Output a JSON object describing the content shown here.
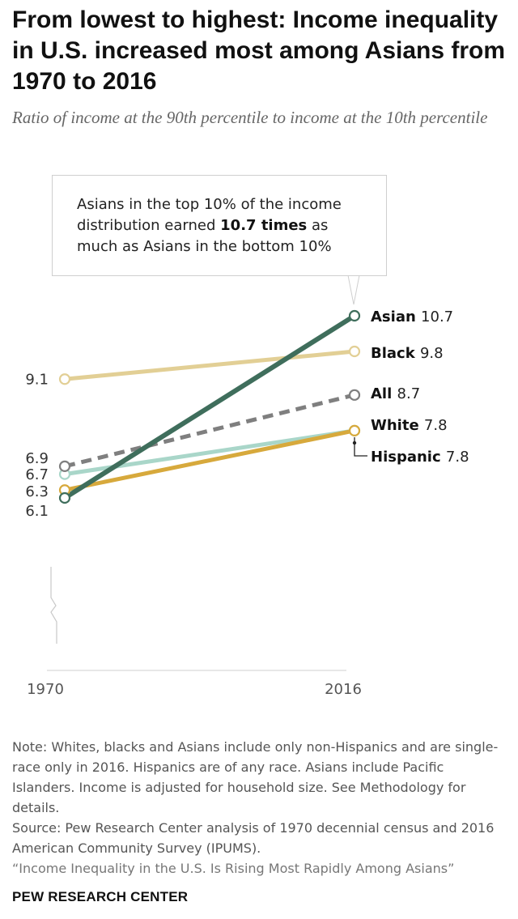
{
  "title": "From lowest to highest: Income inequality in U.S. increased most among Asians from 1970 to 2016",
  "subtitle": "Ratio of income at the 90th percentile to income at the 10th percentile",
  "callout": {
    "text_before": "Asians in the top 10% of the income distribution earned",
    "highlight": "10.7 times",
    "text_after": "as much as Asians in the bottom 10%"
  },
  "notes": {
    "note": "Note: Whites, blacks and Asians include only non-Hispanics and are single-race only in 2016. Hispanics are of any race. Asians include Pacific Islanders. Income is adjusted for household size. See Methodology for details.",
    "source": "Source: Pew Research Center analysis of 1970 decennial census and 2016 American Community Survey (IPUMS).",
    "report": "“Income Inequality in the U.S. Is Rising Most Rapidly Among Asians”"
  },
  "brand": "PEW RESEARCH CENTER",
  "chart_data": {
    "type": "line",
    "title": "From lowest to highest: Income inequality in U.S. increased most among Asians from 1970 to 2016",
    "ylabel": "Ratio of income at the 90th percentile to income at the 10th percentile",
    "xlabel": "",
    "x": [
      "1970",
      "2016"
    ],
    "ylim": [
      6.1,
      10.7
    ],
    "axis_break": true,
    "left_labels": [
      "9.1",
      "6.9",
      "6.7",
      "6.3",
      "6.1"
    ],
    "series": [
      {
        "name": "Black",
        "values": [
          9.1,
          9.8
        ],
        "color": "#e2cf95",
        "dashed": false,
        "emphasis": false
      },
      {
        "name": "Hispanic",
        "values": [
          6.7,
          7.8
        ],
        "color": "#a9d6c9",
        "dashed": false,
        "emphasis": false
      },
      {
        "name": "White",
        "values": [
          6.3,
          7.8
        ],
        "color": "#d7a93c",
        "dashed": false,
        "emphasis": false
      },
      {
        "name": "All",
        "values": [
          6.9,
          8.7
        ],
        "color": "#7f7f7f",
        "dashed": true,
        "emphasis": false
      },
      {
        "name": "Asian",
        "values": [
          6.1,
          10.7
        ],
        "color": "#3f6e5c",
        "dashed": false,
        "emphasis": true
      }
    ]
  }
}
